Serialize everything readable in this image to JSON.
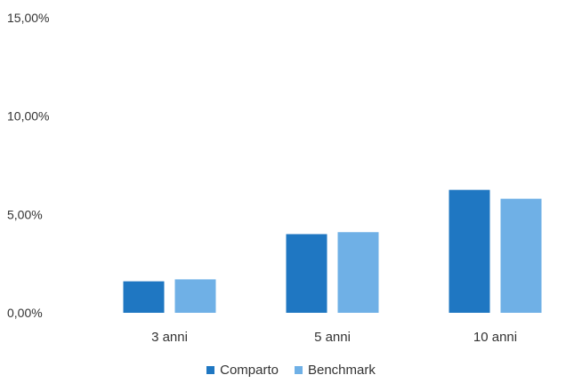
{
  "chart_data": {
    "type": "bar",
    "categories": [
      "3 anni",
      "5 anni",
      "10 anni"
    ],
    "series": [
      {
        "name": "Comparto",
        "values": [
          1.6,
          4.0,
          6.25
        ],
        "color": "#1f77c2"
      },
      {
        "name": "Benchmark",
        "values": [
          1.7,
          4.1,
          5.8
        ],
        "color": "#6fb0e6"
      }
    ],
    "yticks": [
      "0,00%",
      "5,00%",
      "10,00%",
      "15,00%"
    ],
    "ylim": [
      0,
      15
    ],
    "grid": false,
    "legend_position": "bottom"
  }
}
